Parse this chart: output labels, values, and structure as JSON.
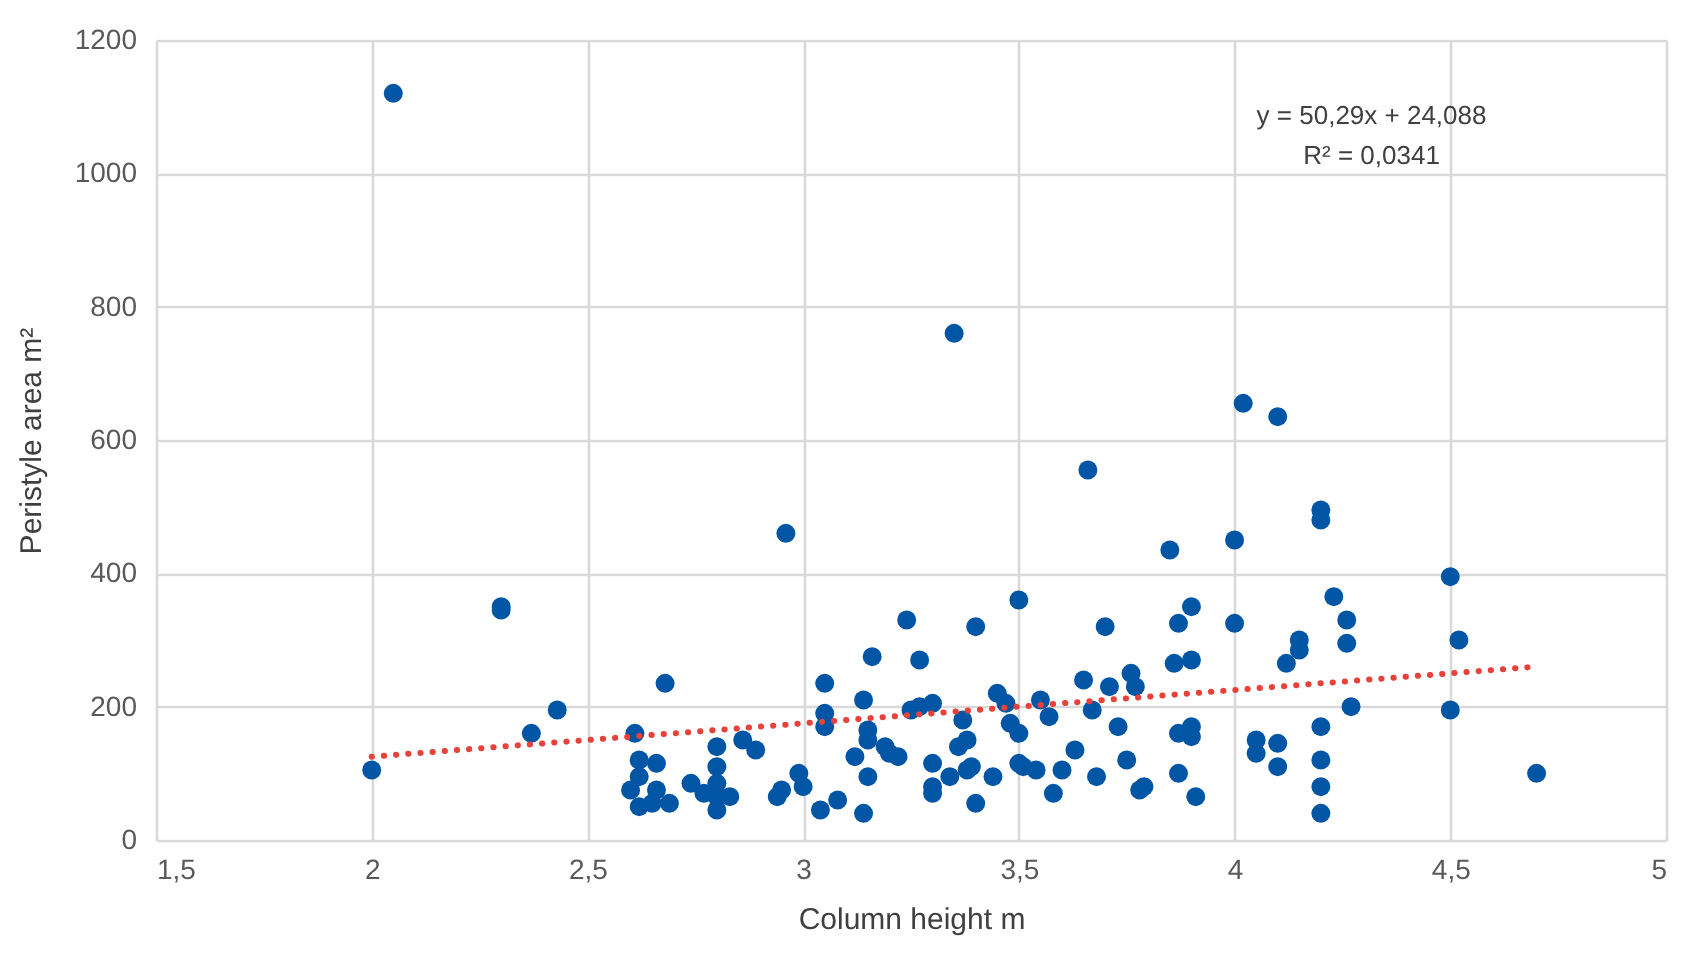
{
  "chart_data": {
    "type": "scatter",
    "xlabel": "Column height m",
    "ylabel": "Peristyle area m²",
    "annotations": [
      "y = 50,29x + 24,088",
      "R² = 0,0341"
    ],
    "xlim": [
      1.5,
      5
    ],
    "ylim": [
      0,
      1200
    ],
    "xticks": [
      {
        "value": 1.5,
        "label": "1,5"
      },
      2,
      {
        "value": 2.5,
        "label": "2,5"
      },
      3,
      {
        "value": 3.5,
        "label": "3,5"
      },
      4,
      {
        "value": 4.5,
        "label": "4,5"
      },
      5
    ],
    "yticks": [
      0,
      200,
      400,
      600,
      800,
      1000,
      1200
    ],
    "grid": true,
    "series": [
      {
        "marker": "circle",
        "color": "#0055a5",
        "x": [
          2.0,
          2.05,
          2.3,
          2.3,
          2.37,
          2.43,
          2.6,
          2.61,
          2.62,
          2.62,
          2.62,
          2.65,
          2.66,
          2.66,
          2.68,
          2.69,
          2.74,
          2.77,
          2.8,
          2.8,
          2.8,
          2.8,
          2.8,
          2.83,
          2.86,
          2.89,
          2.94,
          2.95,
          2.96,
          2.99,
          3.0,
          3.04,
          3.05,
          3.05,
          3.05,
          3.08,
          3.12,
          3.14,
          3.14,
          3.15,
          3.15,
          3.15,
          3.16,
          3.19,
          3.2,
          3.22,
          3.24,
          3.25,
          3.27,
          3.27,
          3.3,
          3.3,
          3.3,
          3.3,
          3.34,
          3.35,
          3.36,
          3.37,
          3.38,
          3.38,
          3.39,
          3.4,
          3.4,
          3.44,
          3.45,
          3.47,
          3.48,
          3.5,
          3.5,
          3.5,
          3.51,
          3.54,
          3.55,
          3.57,
          3.58,
          3.6,
          3.63,
          3.65,
          3.66,
          3.67,
          3.68,
          3.7,
          3.71,
          3.73,
          3.75,
          3.76,
          3.77,
          3.78,
          3.79,
          3.85,
          3.86,
          3.87,
          3.87,
          3.87,
          3.9,
          3.9,
          3.9,
          3.9,
          3.91,
          4.0,
          4.0,
          4.02,
          4.05,
          4.05,
          4.1,
          4.1,
          4.1,
          4.12,
          4.15,
          4.15,
          4.2,
          4.2,
          4.2,
          4.2,
          4.2,
          4.2,
          4.23,
          4.26,
          4.26,
          4.27,
          4.5,
          4.5,
          4.52,
          4.7
        ],
        "values": [
          105,
          1120,
          350,
          345,
          160,
          195,
          75,
          160,
          120,
          95,
          50,
          55,
          115,
          75,
          235,
          55,
          85,
          70,
          140,
          110,
          85,
          65,
          45,
          65,
          150,
          135,
          65,
          75,
          460,
          100,
          80,
          45,
          235,
          190,
          170,
          60,
          125,
          40,
          210,
          165,
          150,
          95,
          275,
          140,
          130,
          125,
          330,
          195,
          270,
          200,
          205,
          115,
          80,
          70,
          95,
          760,
          140,
          180,
          150,
          105,
          110,
          320,
          55,
          95,
          220,
          205,
          175,
          360,
          160,
          115,
          110,
          105,
          210,
          185,
          70,
          105,
          135,
          240,
          555,
          195,
          95,
          320,
          230,
          170,
          120,
          250,
          230,
          75,
          80,
          435,
          265,
          325,
          160,
          100,
          350,
          270,
          170,
          155,
          65,
          450,
          325,
          655,
          150,
          130,
          635,
          145,
          110,
          265,
          285,
          300,
          495,
          480,
          170,
          120,
          80,
          40,
          365,
          330,
          295,
          200,
          395,
          195,
          300,
          100
        ]
      },
      {
        "type": "line",
        "color": "#e8413a",
        "line_style": "dotted",
        "x": [
          2.0,
          4.7
        ],
        "values": [
          125,
          260
        ]
      }
    ]
  }
}
